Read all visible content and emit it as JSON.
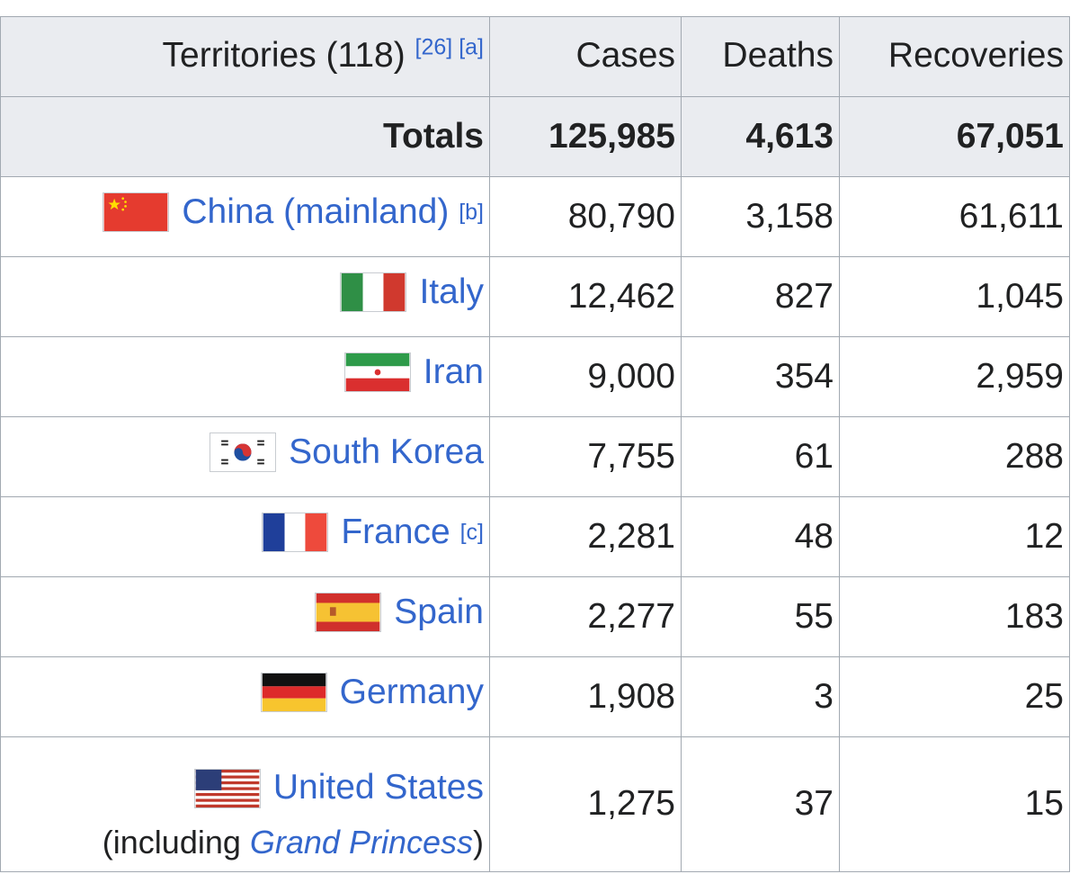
{
  "header": {
    "territories": "Territories (118)",
    "ref1": "[26]",
    "ref2": "[a]",
    "cases": "Cases",
    "deaths": "Deaths",
    "recoveries": "Recoveries"
  },
  "totals": {
    "label": "Totals",
    "cases": "125,985",
    "deaths": "4,613",
    "recoveries": "67,051"
  },
  "rows": [
    {
      "name": "China (mainland)",
      "note": "[b]",
      "flag": "china-flag-icon",
      "cases": "80,790",
      "deaths": "3,158",
      "recoveries": "61,611"
    },
    {
      "name": "Italy",
      "flag": "italy-flag-icon",
      "cases": "12,462",
      "deaths": "827",
      "recoveries": "1,045"
    },
    {
      "name": "Iran",
      "flag": "iran-flag-icon",
      "cases": "9,000",
      "deaths": "354",
      "recoveries": "2,959"
    },
    {
      "name": "South Korea",
      "flag": "south-korea-flag-icon",
      "cases": "7,755",
      "deaths": "61",
      "recoveries": "288"
    },
    {
      "name": "France",
      "note": "[c]",
      "flag": "france-flag-icon",
      "cases": "2,281",
      "deaths": "48",
      "recoveries": "12"
    },
    {
      "name": "Spain",
      "flag": "spain-flag-icon",
      "cases": "2,277",
      "deaths": "55",
      "recoveries": "183"
    },
    {
      "name": "Germany",
      "flag": "germany-flag-icon",
      "cases": "1,908",
      "deaths": "3",
      "recoveries": "25"
    },
    {
      "name": "United States",
      "flag": "us-flag-icon",
      "cases": "1,275",
      "deaths": "37",
      "recoveries": "15",
      "note_prefix": "(including ",
      "note_link": "Grand Princess",
      "note_suffix": ")"
    }
  ],
  "colors": {
    "link": "#3366cc",
    "header_bg": "#eaecf0",
    "border": "#a2a9b1"
  }
}
